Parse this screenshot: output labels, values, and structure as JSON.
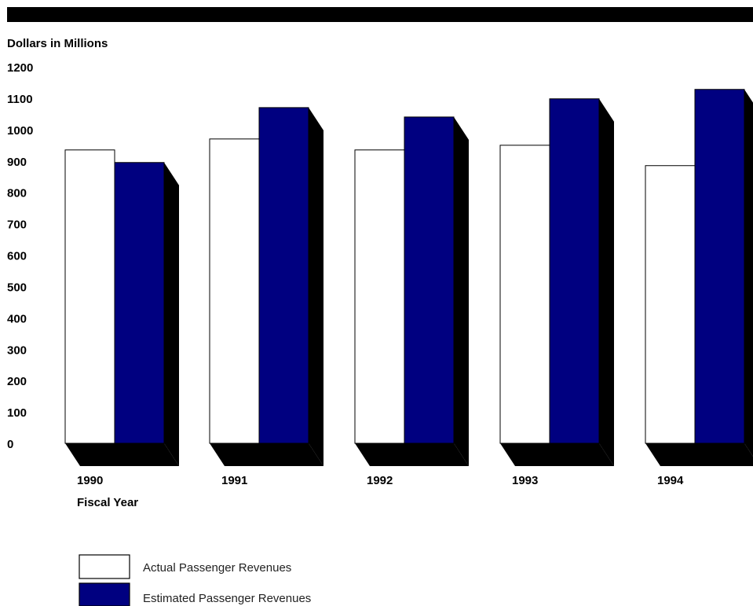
{
  "chart_data": {
    "type": "bar",
    "title": "",
    "ylabel": "Dollars in Millions",
    "xlabel": "Fiscal Year",
    "categories": [
      "1990",
      "1991",
      "1992",
      "1993",
      "1994"
    ],
    "series": [
      {
        "name": "Actual Passenger Revenues",
        "values": [
          935,
          970,
          935,
          950,
          885
        ],
        "color": "#ffffff"
      },
      {
        "name": "Estimated Passenger Revenues",
        "values": [
          895,
          1070,
          1040,
          1098,
          1128
        ],
        "color": "#000080"
      }
    ],
    "ylim": [
      0,
      1200
    ],
    "yticks": [
      0,
      100,
      200,
      300,
      400,
      500,
      600,
      700,
      800,
      900,
      1000,
      1100,
      1200
    ],
    "grid": false,
    "legend_position": "bottom-left",
    "shadow_color": "#000000"
  }
}
